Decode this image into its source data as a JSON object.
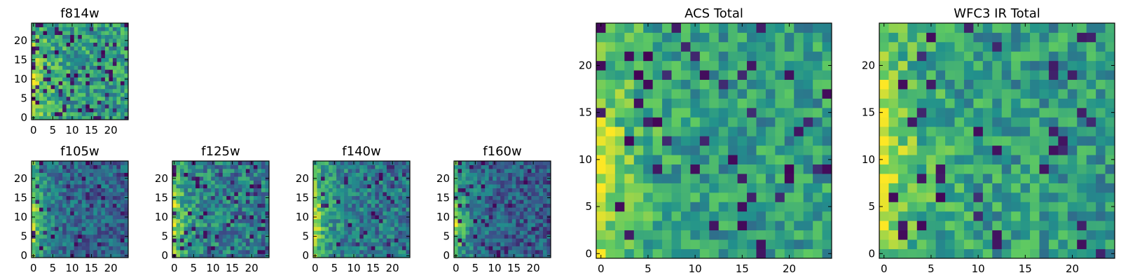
{
  "chart_data": [
    {
      "type": "heatmap",
      "id": "f814w",
      "title": "f814w",
      "rows": 25,
      "cols": 25,
      "xticks": [
        0,
        5,
        10,
        15,
        20
      ],
      "yticks": [
        0,
        5,
        10,
        15,
        20
      ],
      "xlim": [
        -0.5,
        24.5
      ],
      "ylim": [
        -0.5,
        24.5
      ],
      "colormap": "viridis",
      "value_range": [
        0,
        1
      ],
      "pattern": {
        "base": 0.55,
        "edge_boost": 0.35,
        "noise": 0.22,
        "dark_freq": 0.1,
        "seed": 3
      }
    },
    {
      "type": "heatmap",
      "id": "f105w",
      "title": "f105w",
      "rows": 25,
      "cols": 25,
      "xticks": [
        0,
        5,
        10,
        15,
        20
      ],
      "yticks": [
        0,
        5,
        10,
        15,
        20
      ],
      "xlim": [
        -0.5,
        24.5
      ],
      "ylim": [
        -0.5,
        24.5
      ],
      "colormap": "viridis",
      "value_range": [
        0,
        1
      ],
      "pattern": {
        "base": 0.32,
        "edge_boost": 0.55,
        "noise": 0.18,
        "dark_freq": 0.06,
        "seed": 11
      }
    },
    {
      "type": "heatmap",
      "id": "f125w",
      "title": "f125w",
      "rows": 25,
      "cols": 25,
      "xticks": [
        0,
        5,
        10,
        15,
        20
      ],
      "yticks": [
        0,
        5,
        10,
        15,
        20
      ],
      "xlim": [
        -0.5,
        24.5
      ],
      "ylim": [
        -0.5,
        24.5
      ],
      "colormap": "viridis",
      "value_range": [
        0,
        1
      ],
      "pattern": {
        "base": 0.42,
        "edge_boost": 0.45,
        "noise": 0.22,
        "dark_freq": 0.08,
        "seed": 17
      }
    },
    {
      "type": "heatmap",
      "id": "f140w",
      "title": "f140w",
      "rows": 25,
      "cols": 25,
      "xticks": [
        0,
        5,
        10,
        15,
        20
      ],
      "yticks": [
        0,
        5,
        10,
        15,
        20
      ],
      "xlim": [
        -0.5,
        24.5
      ],
      "ylim": [
        -0.5,
        24.5
      ],
      "colormap": "viridis",
      "value_range": [
        0,
        1
      ],
      "pattern": {
        "base": 0.4,
        "edge_boost": 0.5,
        "noise": 0.2,
        "dark_freq": 0.07,
        "seed": 23
      }
    },
    {
      "type": "heatmap",
      "id": "f160w",
      "title": "f160w",
      "rows": 25,
      "cols": 25,
      "xticks": [
        0,
        5,
        10,
        15,
        20
      ],
      "yticks": [
        0,
        5,
        10,
        15,
        20
      ],
      "xlim": [
        -0.5,
        24.5
      ],
      "ylim": [
        -0.5,
        24.5
      ],
      "colormap": "viridis",
      "value_range": [
        0,
        1
      ],
      "pattern": {
        "base": 0.3,
        "edge_boost": 0.55,
        "noise": 0.18,
        "dark_freq": 0.09,
        "seed": 31
      }
    },
    {
      "type": "heatmap",
      "id": "acs-total",
      "title": "ACS Total",
      "rows": 25,
      "cols": 25,
      "xticks": [
        0,
        5,
        10,
        15,
        20
      ],
      "yticks": [
        0,
        5,
        10,
        15,
        20
      ],
      "xlim": [
        -0.5,
        24.5
      ],
      "ylim": [
        -0.5,
        24.5
      ],
      "colormap": "viridis",
      "value_range": [
        0,
        1
      ],
      "pattern": {
        "base": 0.55,
        "edge_boost": 0.4,
        "noise": 0.2,
        "dark_freq": 0.06,
        "seed": 41
      }
    },
    {
      "type": "heatmap",
      "id": "wfc3-ir-total",
      "title": "WFC3 IR Total",
      "rows": 25,
      "cols": 25,
      "xticks": [
        0,
        5,
        10,
        15,
        20
      ],
      "yticks": [
        0,
        5,
        10,
        15,
        20
      ],
      "xlim": [
        -0.5,
        24.5
      ],
      "ylim": [
        -0.5,
        24.5
      ],
      "colormap": "viridis",
      "value_range": [
        0,
        1
      ],
      "pattern": {
        "base": 0.55,
        "edge_boost": 0.4,
        "noise": 0.2,
        "dark_freq": 0.05,
        "seed": 53
      }
    }
  ],
  "colors": {
    "viridis_stops": [
      "#440154",
      "#3b528b",
      "#21918c",
      "#5ec962",
      "#fde725"
    ],
    "axis": "#000000",
    "background": "#ffffff"
  }
}
